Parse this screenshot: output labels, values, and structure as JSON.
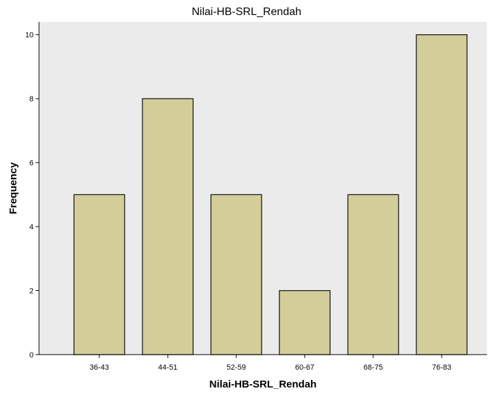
{
  "chart_data": {
    "type": "bar",
    "title": "Nilai-HB-SRL_Rendah",
    "xlabel": "Nilai-HB-SRL_Rendah",
    "ylabel": "Frequency",
    "categories": [
      "36-43",
      "44-51",
      "52-59",
      "60-67",
      "68-75",
      "76-83"
    ],
    "values": [
      5,
      8,
      5,
      2,
      5,
      10
    ],
    "ylim": [
      0,
      10.4
    ],
    "yticks": [
      0,
      2,
      4,
      6,
      8,
      10
    ],
    "grid": false,
    "legend": "none",
    "colors": {
      "plot_background": "#ebebeb",
      "bar_fill": "#d3ce99",
      "bar_stroke": "#1a1a1a",
      "axis": "#000000"
    }
  }
}
